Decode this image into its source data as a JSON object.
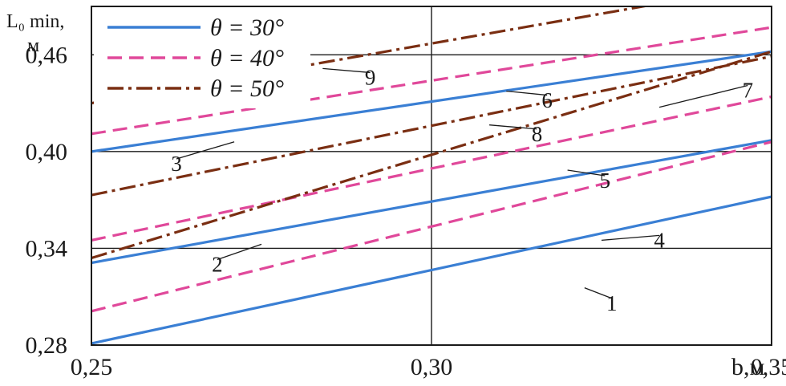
{
  "chart_data": {
    "type": "line",
    "ylabel": "L₀ min,",
    "ylabel_unit": "м",
    "xlabel": "b,м",
    "xlim": [
      0.25,
      0.35
    ],
    "ylim": [
      0.28,
      0.49
    ],
    "x_ticks": [
      0.25,
      0.3,
      0.35
    ],
    "x_tick_labels": [
      "0,25",
      "0,30",
      "0,35"
    ],
    "y_ticks": [
      0.28,
      0.34,
      0.4,
      0.46
    ],
    "y_tick_labels": [
      "0,28",
      "0,34",
      "0,40",
      "0,46"
    ],
    "grid": true,
    "legend_position": "top-left",
    "legend": [
      {
        "label": "θ = 30°",
        "color": "#3a7fd4",
        "dash": "solid"
      },
      {
        "label": "θ = 40°",
        "color": "#e0489a",
        "dash": "dashed"
      },
      {
        "label": "θ = 50°",
        "color": "#7a2e12",
        "dash": "dashdot"
      }
    ],
    "series": [
      {
        "group": "θ = 30°",
        "color": "#3a7fd4",
        "dash": "solid",
        "x": [
          0.25,
          0.35
        ],
        "y": [
          0.281,
          0.372
        ]
      },
      {
        "group": "θ = 30°",
        "color": "#3a7fd4",
        "dash": "solid",
        "x": [
          0.25,
          0.35
        ],
        "y": [
          0.331,
          0.407
        ]
      },
      {
        "group": "θ = 30°",
        "color": "#3a7fd4",
        "dash": "solid",
        "x": [
          0.25,
          0.35
        ],
        "y": [
          0.4,
          0.462
        ]
      },
      {
        "group": "θ = 40°",
        "color": "#e0489a",
        "dash": "dashed",
        "x": [
          0.25,
          0.35
        ],
        "y": [
          0.301,
          0.406
        ]
      },
      {
        "group": "θ = 40°",
        "color": "#e0489a",
        "dash": "dashed",
        "x": [
          0.25,
          0.35
        ],
        "y": [
          0.345,
          0.434
        ]
      },
      {
        "group": "θ = 40°",
        "color": "#e0489a",
        "dash": "dashed",
        "x": [
          0.25,
          0.35
        ],
        "y": [
          0.411,
          0.477
        ]
      },
      {
        "group": "θ = 50°",
        "color": "#7a2e12",
        "dash": "dashdot",
        "x": [
          0.25,
          0.35
        ],
        "y": [
          0.373,
          0.459
        ]
      },
      {
        "group": "θ = 50°",
        "color": "#7a2e12",
        "dash": "dashdot",
        "x": [
          0.25,
          0.35
        ],
        "y": [
          0.334,
          0.462
        ]
      },
      {
        "group": "θ = 50°",
        "color": "#7a2e12",
        "dash": "dashdot",
        "x": [
          0.25,
          0.35
        ],
        "y": [
          0.43,
          0.504
        ]
      }
    ],
    "annotations": [
      {
        "text": "1",
        "label_at": [
          0.3265,
          0.3045
        ],
        "points_to": [
          0.3225,
          0.3155
        ]
      },
      {
        "text": "2",
        "label_at": [
          0.2685,
          0.3285
        ],
        "points_to": [
          0.275,
          0.3425
        ]
      },
      {
        "text": "3",
        "label_at": [
          0.2625,
          0.391
        ],
        "points_to": [
          0.271,
          0.406
        ]
      },
      {
        "text": "4",
        "label_at": [
          0.3335,
          0.3435
        ],
        "points_to": [
          0.325,
          0.345
        ]
      },
      {
        "text": "5",
        "label_at": [
          0.3255,
          0.3805
        ],
        "points_to": [
          0.32,
          0.3885
        ]
      },
      {
        "text": "6",
        "label_at": [
          0.317,
          0.4305
        ],
        "points_to": [
          0.311,
          0.4375
        ]
      },
      {
        "text": "7",
        "label_at": [
          0.3465,
          0.4365
        ],
        "points_to": [
          0.3335,
          0.4275
        ]
      },
      {
        "text": "8",
        "label_at": [
          0.3155,
          0.4095
        ],
        "points_to": [
          0.3085,
          0.4165
        ]
      },
      {
        "text": "9",
        "label_at": [
          0.291,
          0.4445
        ],
        "points_to": [
          0.284,
          0.4515
        ]
      }
    ]
  }
}
